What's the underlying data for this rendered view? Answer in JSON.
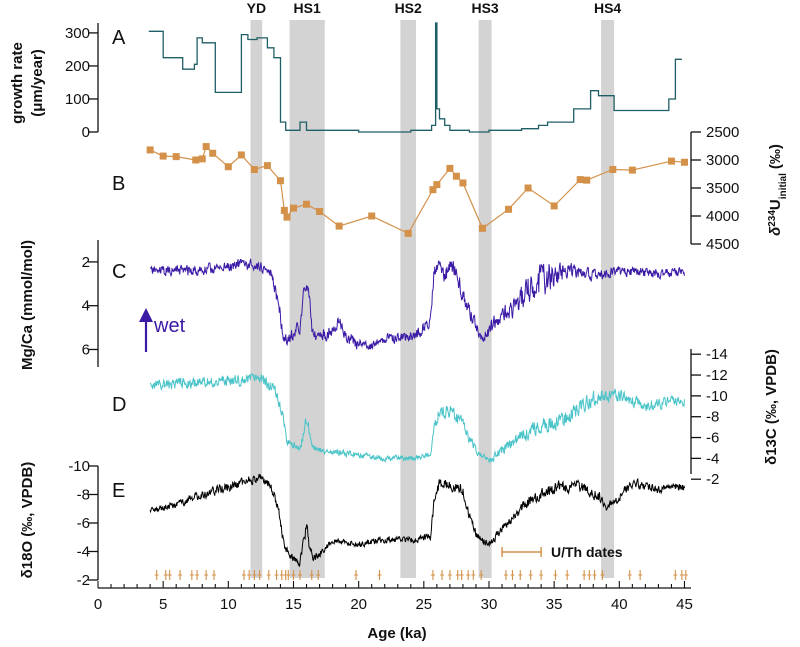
{
  "chart_data": {
    "type": "line",
    "x_axis": {
      "label": "Age (ka)",
      "range": [
        0,
        45.5
      ],
      "ticks": [
        0,
        5,
        10,
        15,
        20,
        25,
        30,
        35,
        40,
        45
      ]
    },
    "events": [
      {
        "label": "YD",
        "start": 11.7,
        "end": 12.6
      },
      {
        "label": "HS1",
        "start": 14.7,
        "end": 17.4
      },
      {
        "label": "HS2",
        "start": 23.2,
        "end": 24.4
      },
      {
        "label": "HS3",
        "start": 29.2,
        "end": 30.2
      },
      {
        "label": "HS4",
        "start": 38.6,
        "end": 39.6
      }
    ],
    "panels": [
      {
        "letter": "A",
        "label_line1": "growth rate",
        "label_line2": "(μm/year)",
        "axis_side": "left",
        "ylim": [
          0,
          330
        ],
        "ticks": [
          0,
          100,
          200,
          300
        ],
        "color": "#1f5f66",
        "style": "step",
        "x": [
          3.9,
          5.0,
          5.0,
          6.5,
          6.5,
          7.4,
          7.4,
          7.6,
          7.6,
          8.0,
          8.0,
          9.0,
          9.0,
          10.0,
          10.0,
          11.0,
          11.0,
          11.5,
          11.5,
          12.2,
          12.2,
          13.0,
          13.0,
          13.5,
          13.5,
          14.0,
          14.0,
          14.4,
          14.4,
          15.5,
          15.5,
          16.0,
          16.0,
          16.5,
          16.5,
          20.0,
          20.0,
          24.0,
          24.0,
          25.6,
          25.6,
          25.9,
          25.9,
          26.0,
          26.0,
          26.2,
          26.2,
          26.6,
          26.6,
          27.0,
          27.0,
          28.5,
          28.5,
          30.0,
          30.0,
          32.5,
          32.5,
          33.8,
          33.8,
          34.5,
          34.5,
          36.5,
          36.5,
          37.8,
          37.8,
          38.4,
          38.4,
          39.6,
          39.6,
          41.0,
          41.0,
          43.8,
          43.8,
          44.3,
          44.3,
          44.8
        ],
        "y": [
          305,
          305,
          225,
          225,
          190,
          190,
          205,
          205,
          285,
          285,
          270,
          270,
          120,
          120,
          120,
          120,
          295,
          295,
          280,
          280,
          285,
          285,
          255,
          255,
          225,
          225,
          30,
          30,
          5,
          5,
          30,
          30,
          5,
          5,
          5,
          5,
          0,
          0,
          5,
          5,
          20,
          20,
          330,
          330,
          70,
          70,
          40,
          40,
          20,
          20,
          5,
          5,
          0,
          0,
          5,
          5,
          10,
          10,
          20,
          20,
          30,
          30,
          70,
          70,
          125,
          125,
          110,
          110,
          65,
          65,
          65,
          65,
          100,
          100,
          220,
          220
        ]
      },
      {
        "letter": "B",
        "label_line1": "δ234U",
        "label_sub": "initial",
        "label_unit": "(‰)",
        "axis_side": "right",
        "ylim": [
          2500,
          4500
        ],
        "reversed": true,
        "ticks": [
          2500,
          3000,
          3500,
          4000,
          4500
        ],
        "color": "#d4914a",
        "style": "line+square",
        "x": [
          4.0,
          5.0,
          6.0,
          7.5,
          8.0,
          8.3,
          8.8,
          10.0,
          11.0,
          12.0,
          13.0,
          14.0,
          14.3,
          14.5,
          15.0,
          16.0,
          17.0,
          18.5,
          21.0,
          23.8,
          25.7,
          26.0,
          27.0,
          27.5,
          28.0,
          29.5,
          31.5,
          33.0,
          35.0,
          37.0,
          37.5,
          39.5,
          41.0,
          44.0,
          45.0
        ],
        "y": [
          2820,
          2930,
          2940,
          3000,
          2980,
          2760,
          2880,
          3120,
          2910,
          3170,
          3100,
          3370,
          3900,
          4020,
          3860,
          3790,
          3920,
          4180,
          4000,
          4310,
          3530,
          3440,
          3150,
          3290,
          3410,
          4220,
          3880,
          3500,
          3820,
          3350,
          3360,
          3170,
          3180,
          3020,
          3040
        ]
      },
      {
        "letter": "C",
        "label": "Mg/Ca (mmol/mol)",
        "axis_side": "left",
        "ylim": [
          6.8,
          1.0
        ],
        "reversed": true,
        "ticks": [
          2,
          4,
          6
        ],
        "color": "#3b1aa6",
        "style": "noisy",
        "annotation": "wet",
        "seed": 11,
        "x": [
          4.0,
          8.0,
          11.0,
          12.5,
          13.3,
          13.9,
          14.2,
          14.5,
          15.0,
          15.5,
          15.8,
          16.0,
          16.2,
          16.4,
          16.7,
          17.5,
          18.5,
          19.5,
          20.5,
          22.0,
          23.5,
          24.5,
          25.5,
          25.8,
          26.2,
          26.6,
          27.0,
          27.3,
          27.6,
          28.0,
          28.5,
          29.0,
          29.3,
          29.5,
          30.0,
          31.0,
          32.0,
          33.0,
          34.0,
          35.0,
          36.0,
          38.0,
          40.0,
          42.0,
          45.0
        ],
        "y": [
          2.4,
          2.4,
          2.1,
          2.2,
          2.5,
          4.0,
          5.3,
          5.6,
          5.2,
          5.0,
          3.5,
          2.9,
          3.6,
          5.0,
          5.4,
          5.3,
          4.8,
          5.7,
          5.9,
          5.5,
          5.4,
          5.3,
          4.6,
          2.3,
          2.1,
          2.7,
          2.0,
          2.4,
          2.6,
          3.5,
          4.3,
          4.9,
          5.3,
          5.5,
          5.1,
          4.4,
          4.0,
          3.3,
          2.9,
          2.5,
          2.4,
          2.6,
          2.4,
          2.5,
          2.5
        ],
        "amp": [
          0.3,
          0.35,
          0.3,
          0.3,
          0.3,
          0.5,
          0.4,
          0.4,
          0.4,
          0.4,
          0.6,
          0.4,
          0.4,
          0.4,
          0.3,
          0.45,
          0.4,
          0.45,
          0.3,
          0.3,
          0.3,
          0.35,
          0.4,
          0.6,
          0.4,
          0.6,
          0.5,
          0.5,
          0.6,
          0.6,
          0.5,
          0.4,
          0.3,
          0.3,
          0.45,
          0.55,
          0.85,
          0.95,
          1.05,
          0.9,
          0.5,
          0.35,
          0.3,
          0.3,
          0.3
        ]
      },
      {
        "letter": "D",
        "label": "δ13C (‰, VPDB)",
        "axis_side": "right",
        "ylim": [
          -2.5,
          -14.5
        ],
        "reversed": true,
        "ticks": [
          -14,
          -12,
          -10,
          -8,
          -6,
          -4,
          -2
        ],
        "color": "#4ac4c8",
        "style": "noisy",
        "seed": 23,
        "x": [
          4.0,
          8.0,
          11.0,
          12.5,
          13.5,
          14.2,
          14.5,
          15.0,
          15.5,
          15.8,
          16.0,
          16.2,
          16.4,
          17.0,
          18.0,
          20.0,
          22.0,
          24.0,
          25.5,
          25.8,
          26.2,
          27.0,
          28.0,
          28.5,
          29.0,
          29.5,
          30.0,
          31.0,
          33.0,
          35.0,
          36.0,
          37.0,
          38.5,
          40.0,
          42.0,
          44.0,
          45.0
        ],
        "y": [
          -11.0,
          -11.3,
          -11.5,
          -11.6,
          -10.8,
          -8.0,
          -5.6,
          -5.2,
          -5.0,
          -6.5,
          -8.0,
          -6.5,
          -5.0,
          -4.8,
          -4.6,
          -4.3,
          -4.0,
          -4.0,
          -4.4,
          -7.0,
          -8.5,
          -8.5,
          -7.5,
          -6.0,
          -4.8,
          -4.2,
          -3.8,
          -4.8,
          -6.5,
          -7.5,
          -8.0,
          -9.0,
          -10.0,
          -10.0,
          -9.0,
          -9.5,
          -9.5
        ],
        "amp": [
          0.7,
          0.7,
          0.7,
          0.7,
          0.7,
          0.6,
          0.5,
          0.45,
          0.45,
          0.7,
          0.9,
          0.7,
          0.5,
          0.45,
          0.4,
          0.4,
          0.35,
          0.35,
          0.4,
          0.8,
          0.9,
          0.9,
          0.8,
          0.7,
          0.45,
          0.4,
          0.4,
          0.6,
          0.9,
          1.1,
          1.1,
          1.0,
          0.9,
          0.8,
          0.8,
          0.7,
          0.7
        ]
      },
      {
        "letter": "E",
        "label": "δ18O (‰, VPDB)",
        "axis_side": "left",
        "ylim": [
          -2,
          -10
        ],
        "reversed": true,
        "ticks": [
          -10,
          -8,
          -6,
          -4,
          -2
        ],
        "color": "#000000",
        "style": "noisy",
        "seed": 37,
        "x": [
          4.0,
          6.0,
          8.0,
          10.0,
          11.5,
          12.5,
          13.3,
          13.8,
          14.2,
          14.5,
          15.0,
          15.5,
          15.8,
          16.0,
          16.2,
          16.5,
          17.0,
          18.0,
          20.0,
          22.0,
          24.0,
          25.5,
          25.8,
          26.2,
          27.0,
          28.0,
          28.5,
          29.0,
          29.5,
          30.0,
          31.0,
          32.0,
          33.0,
          34.0,
          35.0,
          37.0,
          38.5,
          39.0,
          40.0,
          41.0,
          43.0,
          45.0
        ],
        "y": [
          -6.8,
          -7.3,
          -8.0,
          -8.5,
          -9.0,
          -9.2,
          -8.5,
          -7.0,
          -5.0,
          -4.0,
          -3.5,
          -3.2,
          -5.0,
          -5.8,
          -4.5,
          -3.5,
          -3.8,
          -4.8,
          -4.5,
          -4.8,
          -4.8,
          -5.0,
          -7.5,
          -8.8,
          -8.7,
          -8.3,
          -6.5,
          -5.2,
          -4.8,
          -4.6,
          -5.5,
          -6.5,
          -7.5,
          -8.0,
          -8.5,
          -8.6,
          -7.8,
          -7.2,
          -7.8,
          -8.8,
          -8.3,
          -8.6
        ],
        "amp": [
          0.3,
          0.35,
          0.4,
          0.45,
          0.45,
          0.4,
          0.45,
          0.5,
          0.5,
          0.4,
          0.35,
          0.35,
          0.6,
          0.6,
          0.5,
          0.35,
          0.35,
          0.3,
          0.3,
          0.3,
          0.3,
          0.35,
          0.6,
          0.5,
          0.5,
          0.5,
          0.5,
          0.4,
          0.35,
          0.35,
          0.4,
          0.45,
          0.55,
          0.55,
          0.6,
          0.55,
          0.5,
          0.4,
          0.45,
          0.45,
          0.4,
          0.4
        ]
      }
    ],
    "uth_dates": {
      "label": "U/Th dates",
      "color": "#d4914a",
      "error_bar": [
        31.0,
        34.0
      ],
      "ages": [
        4.5,
        5.2,
        5.5,
        6.3,
        7.2,
        7.6,
        8.3,
        8.9,
        11.2,
        11.6,
        12.0,
        12.4,
        13.1,
        13.7,
        14.1,
        14.4,
        14.6,
        15.0,
        15.5,
        16.4,
        16.9,
        19.8,
        21.6,
        25.7,
        26.4,
        27.0,
        27.6,
        27.9,
        28.4,
        28.8,
        29.4,
        31.3,
        31.8,
        32.4,
        33.2,
        34.0,
        35.1,
        36.0,
        37.3,
        37.7,
        38.1,
        38.7,
        40.8,
        41.6,
        44.3,
        44.8,
        45.1
      ]
    }
  }
}
